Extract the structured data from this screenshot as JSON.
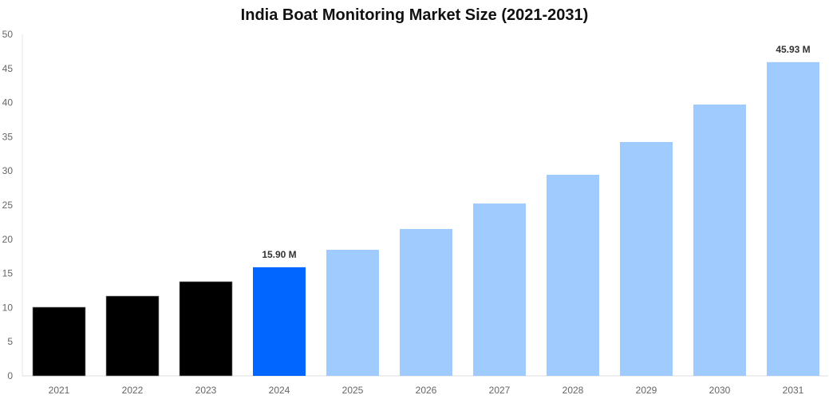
{
  "chart_data": {
    "type": "bar",
    "title": "India Boat Monitoring Market Size (2021-2031)",
    "xlabel": "",
    "ylabel": "",
    "ylim": [
      0,
      50
    ],
    "yticks": [
      0,
      5,
      10,
      15,
      20,
      25,
      30,
      35,
      40,
      45,
      50
    ],
    "categories": [
      "2021",
      "2022",
      "2023",
      "2024",
      "2025",
      "2026",
      "2027",
      "2028",
      "2029",
      "2030",
      "2031"
    ],
    "values": [
      10.05,
      11.68,
      13.79,
      15.9,
      18.46,
      21.5,
      25.23,
      29.44,
      34.23,
      39.72,
      45.93
    ],
    "bar_colors": [
      "#000000",
      "#000000",
      "#000000",
      "#0066ff",
      "#a0cbff",
      "#a0cbff",
      "#a0cbff",
      "#a0cbff",
      "#a0cbff",
      "#a0cbff",
      "#a0cbff"
    ],
    "data_labels": [
      {
        "category": "2024",
        "text": "15.90 M"
      },
      {
        "category": "2031",
        "text": "45.93 M"
      }
    ],
    "grid": false,
    "legend": "none"
  }
}
